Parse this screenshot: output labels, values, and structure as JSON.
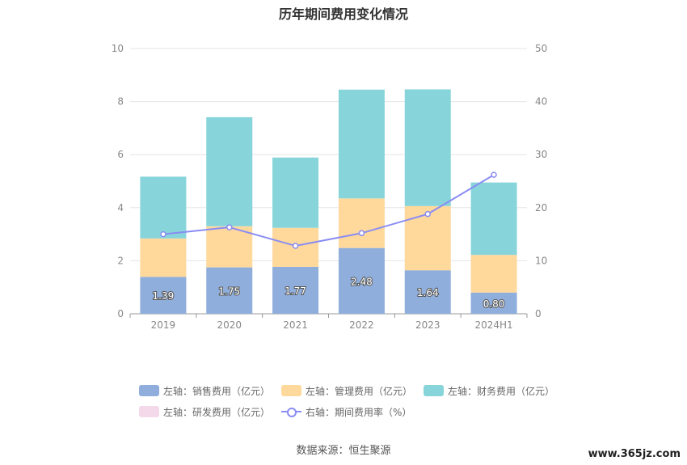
{
  "title": "历年期间费用变化情况",
  "source": "数据来源：恒生聚源",
  "watermark": "www.365jz.com",
  "colors": {
    "sales": "#8faedc",
    "mgmt": "#ffd89c",
    "finance": "#87d5da",
    "rnd": "#f3d9ea",
    "rate": "#8a8df2"
  },
  "legend": [
    {
      "key": "sales",
      "label": "左轴：销售费用（亿元）"
    },
    {
      "key": "mgmt",
      "label": "左轴：管理费用（亿元）"
    },
    {
      "key": "finance",
      "label": "左轴：财务费用（亿元）"
    },
    {
      "key": "rnd",
      "label": "左轴：研发费用（亿元）"
    },
    {
      "key": "rate",
      "label": "右轴：期间费用率（%）"
    }
  ],
  "chart_data": {
    "type": "bar",
    "stacked": true,
    "categories": [
      "2019",
      "2020",
      "2021",
      "2022",
      "2023",
      "2024H1"
    ],
    "series": [
      {
        "name": "左轴：销售费用（亿元）",
        "key": "sales",
        "axis": "left",
        "values": [
          1.39,
          1.75,
          1.77,
          2.48,
          1.64,
          0.8
        ],
        "labels": [
          "1.39",
          "1.75",
          "1.77",
          "2.48",
          "1.64",
          "0.80"
        ]
      },
      {
        "name": "左轴：管理费用（亿元）",
        "key": "mgmt",
        "axis": "left",
        "values": [
          1.45,
          1.55,
          1.47,
          1.87,
          2.42,
          1.42
        ]
      },
      {
        "name": "左轴：财务费用（亿元）",
        "key": "finance",
        "axis": "left",
        "values": [
          2.33,
          4.11,
          2.65,
          4.1,
          4.4,
          2.73
        ]
      },
      {
        "name": "左轴：研发费用（亿元）",
        "key": "rnd",
        "axis": "left",
        "values": [
          0,
          0,
          0,
          0,
          0,
          0
        ]
      },
      {
        "name": "右轴：期间费用率（%）",
        "key": "rate",
        "axis": "right",
        "type": "line",
        "values": [
          15.0,
          16.3,
          12.8,
          15.2,
          18.8,
          26.2
        ]
      }
    ],
    "y_left": {
      "min": 0,
      "max": 10,
      "ticks": [
        "0",
        "2",
        "4",
        "6",
        "8",
        "10"
      ]
    },
    "y_right": {
      "min": 0,
      "max": 50,
      "ticks": [
        "0",
        "10",
        "20",
        "30",
        "40",
        "50"
      ]
    },
    "grid": true,
    "legend_position": "bottom"
  }
}
